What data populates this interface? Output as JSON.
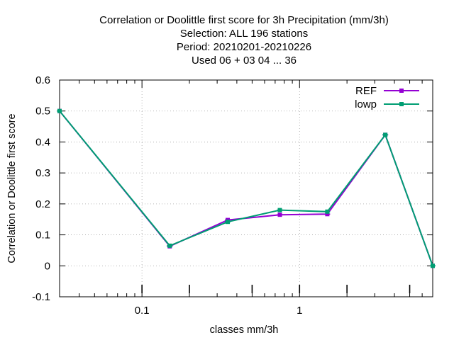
{
  "chart_data": {
    "type": "line",
    "title_lines": [
      "Correlation or Doolittle first score  for 3h Precipitation (mm/3h)",
      "Selection: ALL    196 stations",
      "Period: 20210201-20210226",
      "Used  06  + 03 04 ... 36"
    ],
    "xlabel": "classes mm/3h",
    "ylabel": "Correlation or Doolittle first score",
    "x_scale": "log",
    "xlim": [
      0.03,
      7.0
    ],
    "ylim": [
      -0.1,
      0.6
    ],
    "x_ticks": [
      {
        "value": 0.1,
        "label": "0.1"
      },
      {
        "value": 1,
        "label": "1"
      }
    ],
    "y_ticks": [
      {
        "value": -0.1,
        "label": "-0.1"
      },
      {
        "value": 0,
        "label": "0"
      },
      {
        "value": 0.1,
        "label": "0.1"
      },
      {
        "value": 0.2,
        "label": "0.2"
      },
      {
        "value": 0.3,
        "label": "0.3"
      },
      {
        "value": 0.4,
        "label": "0.4"
      },
      {
        "value": 0.5,
        "label": "0.5"
      },
      {
        "value": 0.6,
        "label": "0.6"
      }
    ],
    "grid": true,
    "legend_position": "top-right",
    "series": [
      {
        "name": "REF",
        "color": "#9400d3",
        "x": [
          0.03,
          0.15,
          0.35,
          0.75,
          1.5,
          3.5,
          7.0
        ],
        "y": [
          0.5,
          0.063,
          0.148,
          0.165,
          0.167,
          0.423,
          0.0
        ]
      },
      {
        "name": "lowp",
        "color": "#009e73",
        "x": [
          0.03,
          0.15,
          0.35,
          0.75,
          1.5,
          3.5,
          7.0
        ],
        "y": [
          0.5,
          0.065,
          0.142,
          0.18,
          0.175,
          0.423,
          0.0
        ]
      }
    ]
  }
}
